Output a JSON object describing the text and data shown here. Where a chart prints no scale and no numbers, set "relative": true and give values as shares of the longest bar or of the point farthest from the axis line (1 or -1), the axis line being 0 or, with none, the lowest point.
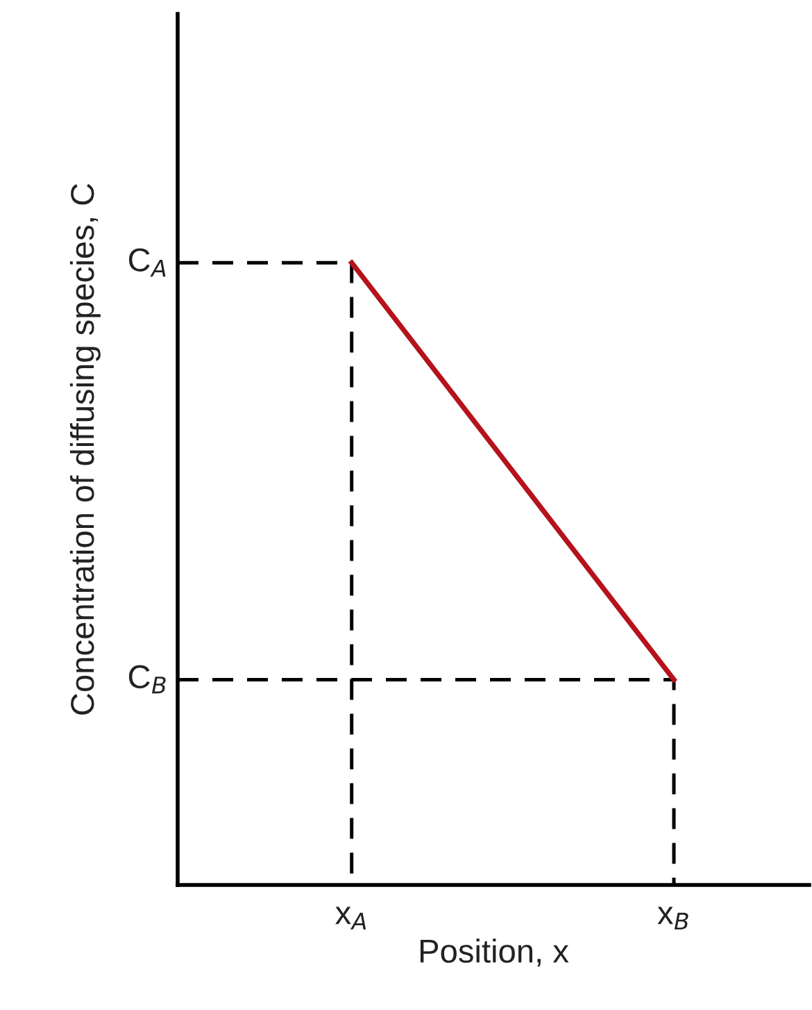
{
  "chart_data": {
    "type": "line",
    "xlabel": "Position, x",
    "ylabel": "Concentration of diffusing species, C",
    "categories": [
      "x$_{A}$",
      "x$_{B}$"
    ],
    "relative": true,
    "series": [
      {
        "color": "#b5121b",
        "values": [
          1,
          0.33
        ]
      }
    ],
    "ref_lines": [
      {
        "axis": "y",
        "value": 1,
        "label": "C$_{A}$",
        "color": "#000000",
        "line_style": "dashed"
      },
      {
        "axis": "y",
        "value": 0.33,
        "label": "C$_{B}$",
        "color": "#000000",
        "line_style": "dashed"
      }
    ]
  }
}
